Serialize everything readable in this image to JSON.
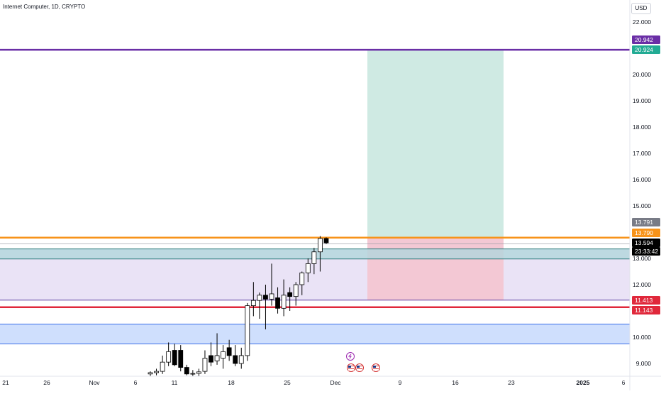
{
  "header": {
    "symbol_line": "Internet Computer, 1D, CRYPTO"
  },
  "price_scale": {
    "currency": "USD",
    "labels": [
      "22.000",
      "21.000",
      "20.000",
      "19.000",
      "18.000",
      "17.000",
      "16.000",
      "15.000",
      "14.000",
      "13.000",
      "12.000",
      "11.000",
      "10.000",
      "9.000"
    ]
  },
  "time_axis": {
    "labels": [
      "21",
      "26",
      "Nov",
      "6",
      "11",
      "18",
      "25",
      "Dec",
      "9",
      "16",
      "23",
      "2025",
      "6"
    ]
  },
  "badges": [
    {
      "text": "20.942",
      "bg": "#6a2ea6",
      "color": "#ffffff"
    },
    {
      "text": "20.924",
      "bg": "#22ab94",
      "color": "#ffffff"
    },
    {
      "text": "13.791",
      "bg": "#787b86",
      "color": "#ffffff"
    },
    {
      "text": "13.790",
      "bg": "#f7931a",
      "color": "#ffffff"
    },
    {
      "text": "13.594",
      "bg": "#000000",
      "color": "#ffffff"
    },
    {
      "text": "23:33:42",
      "bg": "#000000",
      "color": "#ffffff"
    },
    {
      "text": "11.413",
      "bg": "#e0283b",
      "color": "#ffffff"
    },
    {
      "text": "11.143",
      "bg": "#e0283b",
      "color": "#ffffff"
    }
  ],
  "events": [
    "dividend-icon",
    "us-flag-icon",
    "us-flag-icon",
    "us-flag-icon"
  ],
  "colors": {
    "up_candle_fill": "#ffffff",
    "down_candle_fill": "#000000",
    "candle_outline": "#000000",
    "purple_line": "#6a2ea6",
    "orange_line": "#f7931a",
    "red_line": "#e0283b",
    "target_zone": "#cfeae3",
    "stop_zone": "#f3c8d4",
    "teal_zone": "#b2d6dc",
    "lavender_zone": "#e6def5",
    "blue_zone": "#cfdffd"
  },
  "chart_data": {
    "type": "candlestick",
    "price_axis_range": [
      8.5,
      22.6
    ],
    "horizontal_levels": [
      20.942,
      13.79,
      11.143
    ],
    "zones": [
      {
        "name": "target",
        "from": 13.79,
        "to": 20.924
      },
      {
        "name": "stop",
        "from": 11.413,
        "to": 13.79
      },
      {
        "name": "teal",
        "from": 12.98,
        "to": 13.36
      },
      {
        "name": "lavender",
        "from": 11.413,
        "to": 13.36
      },
      {
        "name": "blue",
        "from": 9.75,
        "to": 10.5
      }
    ],
    "candles": [
      {
        "o": 8.6,
        "h": 8.7,
        "l": 8.5,
        "c": 8.65
      },
      {
        "o": 8.65,
        "h": 8.8,
        "l": 8.55,
        "c": 8.7
      },
      {
        "o": 8.7,
        "h": 9.3,
        "l": 8.6,
        "c": 9.05
      },
      {
        "o": 9.05,
        "h": 9.8,
        "l": 8.9,
        "c": 9.45
      },
      {
        "o": 9.5,
        "h": 9.75,
        "l": 8.9,
        "c": 8.95
      },
      {
        "o": 9.5,
        "h": 9.7,
        "l": 8.7,
        "c": 8.85
      },
      {
        "o": 8.85,
        "h": 8.95,
        "l": 8.55,
        "c": 8.6
      },
      {
        "o": 8.6,
        "h": 8.75,
        "l": 8.5,
        "c": 8.62
      },
      {
        "o": 8.62,
        "h": 8.8,
        "l": 8.5,
        "c": 8.68
      },
      {
        "o": 8.7,
        "h": 9.5,
        "l": 8.6,
        "c": 9.2
      },
      {
        "o": 9.3,
        "h": 9.8,
        "l": 8.9,
        "c": 9.05
      },
      {
        "o": 9.1,
        "h": 10.15,
        "l": 8.95,
        "c": 9.3
      },
      {
        "o": 9.2,
        "h": 9.7,
        "l": 8.8,
        "c": 9.45
      },
      {
        "o": 9.6,
        "h": 9.9,
        "l": 9.1,
        "c": 9.3
      },
      {
        "o": 9.3,
        "h": 9.7,
        "l": 8.9,
        "c": 9.0
      },
      {
        "o": 9.0,
        "h": 9.6,
        "l": 8.8,
        "c": 9.3
      },
      {
        "o": 9.3,
        "h": 11.3,
        "l": 9.1,
        "c": 11.2
      },
      {
        "o": 11.2,
        "h": 12.1,
        "l": 10.8,
        "c": 11.4
      },
      {
        "o": 11.4,
        "h": 11.7,
        "l": 10.7,
        "c": 11.6
      },
      {
        "o": 11.6,
        "h": 12.0,
        "l": 10.3,
        "c": 11.45
      },
      {
        "o": 11.45,
        "h": 12.8,
        "l": 11.2,
        "c": 11.65
      },
      {
        "o": 11.5,
        "h": 11.9,
        "l": 10.9,
        "c": 11.1
      },
      {
        "o": 11.1,
        "h": 12.2,
        "l": 10.8,
        "c": 11.6
      },
      {
        "o": 11.7,
        "h": 11.9,
        "l": 11.0,
        "c": 11.55
      },
      {
        "o": 11.55,
        "h": 12.1,
        "l": 11.2,
        "c": 12.0
      },
      {
        "o": 12.0,
        "h": 12.5,
        "l": 11.6,
        "c": 12.45
      },
      {
        "o": 12.45,
        "h": 13.0,
        "l": 12.1,
        "c": 12.8
      },
      {
        "o": 12.8,
        "h": 13.4,
        "l": 12.4,
        "c": 13.25
      },
      {
        "o": 13.25,
        "h": 13.85,
        "l": 12.5,
        "c": 13.76
      },
      {
        "o": 13.76,
        "h": 13.8,
        "l": 13.55,
        "c": 13.594
      }
    ]
  }
}
